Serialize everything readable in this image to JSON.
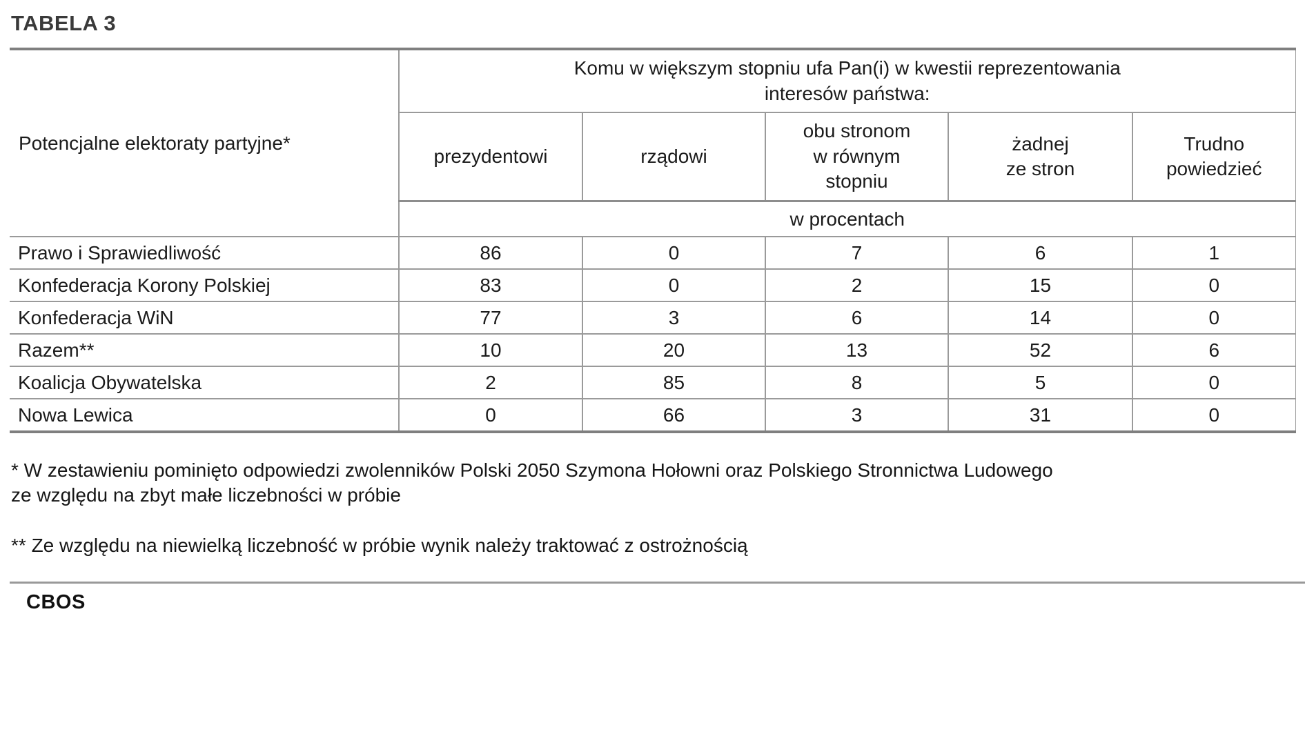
{
  "page": {
    "title": "TABELA 3",
    "brand": "CBOS"
  },
  "colors": {
    "border_outer": "#7f7f7f",
    "border_inner": "#9a9a9a",
    "text": "#1b1b1b",
    "title": "#3a3a3a"
  },
  "table": {
    "corner_header": "Potencjalne elektoraty partyjne*",
    "question_header": "Komu w większym stopniu ufa Pan(i) w kwestii reprezentowania\ninteresów państwa:",
    "column_headers": [
      "prezydentowi",
      "rządowi",
      "obu stronom\nw równym\nstopniu",
      "żadnej\nze stron",
      "Trudno\npowiedzieć"
    ],
    "unit_row_label": "w procentach",
    "rows": [
      {
        "label": "Prawo i Sprawiedliwość",
        "values": [
          86,
          0,
          7,
          6,
          1
        ]
      },
      {
        "label": "Konfederacja Korony Polskiej",
        "values": [
          83,
          0,
          2,
          15,
          0
        ]
      },
      {
        "label": "Konfederacja WiN",
        "values": [
          77,
          3,
          6,
          14,
          0
        ]
      },
      {
        "label": "Razem**",
        "values": [
          10,
          20,
          13,
          52,
          6
        ]
      },
      {
        "label": "Koalicja Obywatelska",
        "values": [
          2,
          85,
          8,
          5,
          0
        ]
      },
      {
        "label": "Nowa Lewica",
        "values": [
          0,
          66,
          3,
          31,
          0
        ]
      }
    ]
  },
  "footnotes": {
    "first": "* W zestawieniu pominięto odpowiedzi zwolenników Polski 2050 Szymona Hołowni oraz Polskiego Stronnictwa Ludowego\nze względu na zbyt małe liczebności w próbie",
    "second": "** Ze względu na niewielką liczebność w próbie wynik należy traktować z ostrożnością"
  }
}
